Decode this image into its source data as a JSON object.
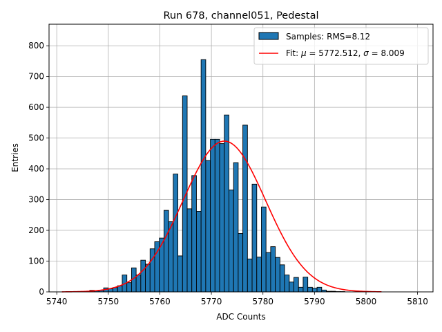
{
  "chart_data": {
    "type": "bar",
    "title": "Run 678, channel051, Pedestal",
    "xlabel": "ADC Counts",
    "ylabel": "Entries",
    "xlim": [
      5738.5,
      5813.0
    ],
    "ylim": [
      0,
      870
    ],
    "xticks": [
      5740,
      5750,
      5760,
      5770,
      5780,
      5790,
      5800,
      5810
    ],
    "yticks": [
      0,
      100,
      200,
      300,
      400,
      500,
      600,
      700,
      800
    ],
    "grid": true,
    "legend_position": "top-right",
    "legend": {
      "hist_label": "Samples: RMS=8.12",
      "fit_label_prefix": "Fit: ",
      "fit_mu_symbol": "μ",
      "fit_mu_value": " = 5772.512, ",
      "fit_sigma_symbol": "σ",
      "fit_sigma_value": " = 8.009"
    },
    "colors": {
      "bar": "#1f77b4",
      "bar_edge": "#000000",
      "fit": "#ff0000",
      "grid": "#b0b0b0"
    },
    "bin_width": 0.9,
    "bin_start": 5741,
    "histogram_counts": [
      0,
      0,
      0,
      0,
      0,
      0,
      5,
      3,
      5,
      13,
      10,
      14,
      20,
      55,
      30,
      78,
      55,
      103,
      90,
      140,
      163,
      175,
      265,
      228,
      383,
      117,
      637,
      270,
      378,
      262,
      755,
      427,
      496,
      496,
      482,
      575,
      331,
      420,
      190,
      542,
      107,
      350,
      113,
      276,
      128,
      147,
      112,
      88,
      55,
      32,
      47,
      15,
      48,
      15,
      12,
      15,
      6,
      2,
      2,
      1,
      1,
      0,
      0,
      0,
      0,
      0,
      0,
      0,
      0,
      0,
      0,
      0,
      0
    ],
    "fit": {
      "mu": 5772.512,
      "sigma": 8.009,
      "amplitude": 490,
      "x_range": [
        5741,
        5803
      ]
    }
  }
}
